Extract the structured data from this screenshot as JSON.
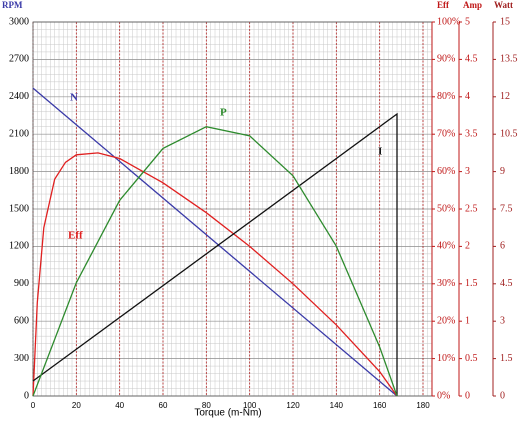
{
  "chart_data": {
    "type": "line",
    "x_label": "Torque (m-Nm)",
    "xlim": [
      0,
      180
    ],
    "xticks": [
      0,
      20,
      40,
      60,
      80,
      100,
      120,
      140,
      160,
      180
    ],
    "y_label": "RPM",
    "ylim": [
      0,
      3000
    ],
    "yticks": [
      0,
      300,
      600,
      900,
      1200,
      1500,
      1800,
      2100,
      2400,
      2700,
      3000
    ],
    "y2_label": "Eff",
    "y2lim": [
      0,
      100
    ],
    "y2ticks": [
      {
        "value": 0,
        "label": "0%"
      },
      {
        "value": 10,
        "label": "10%"
      },
      {
        "value": 20,
        "label": "20%"
      },
      {
        "value": 30,
        "label": "30%"
      },
      {
        "value": 40,
        "label": "40%"
      },
      {
        "value": 50,
        "label": "50%"
      },
      {
        "value": 60,
        "label": "60%"
      },
      {
        "value": 70,
        "label": "70%"
      },
      {
        "value": 80,
        "label": "80%"
      },
      {
        "value": 90,
        "label": "90%"
      },
      {
        "value": 100,
        "label": "100%"
      }
    ],
    "y3_label": "Amp",
    "y3lim": [
      0,
      5
    ],
    "y3ticks": [
      0,
      0.5,
      1,
      1.5,
      2,
      2.5,
      3,
      3.5,
      4,
      4.5,
      5
    ],
    "y4_label": "Watt",
    "y4lim": [
      0,
      15
    ],
    "y4ticks": [
      0,
      1.5,
      3,
      4.5,
      6,
      7.5,
      9,
      10.5,
      12,
      13.5,
      15
    ],
    "grid": true,
    "series": [
      {
        "name": "N",
        "color": "#3a3aa8",
        "axis": "y",
        "x": [
          0,
          168
        ],
        "values": [
          2470,
          0
        ]
      },
      {
        "name": "Eff",
        "color": "#e02020",
        "axis": "y2",
        "x": [
          0,
          2,
          5,
          10,
          15,
          20,
          30,
          40,
          60,
          80,
          100,
          120,
          140,
          160,
          168
        ],
        "values": [
          0,
          25,
          45,
          58,
          62.5,
          64.5,
          65,
          63.5,
          57,
          49,
          40,
          30,
          19,
          6.5,
          0
        ]
      },
      {
        "name": "I",
        "color": "#111111",
        "axis": "y3",
        "x": [
          0,
          168,
          168
        ],
        "values": [
          0.2,
          3.77,
          0
        ]
      },
      {
        "name": "P",
        "color": "#2e8b2e",
        "axis": "y4",
        "x": [
          0,
          20,
          40,
          60,
          80,
          100,
          120,
          140,
          160,
          168
        ],
        "values": [
          0,
          4.54,
          7.85,
          9.93,
          10.8,
          10.43,
          8.83,
          6.01,
          1.96,
          0
        ]
      }
    ]
  }
}
